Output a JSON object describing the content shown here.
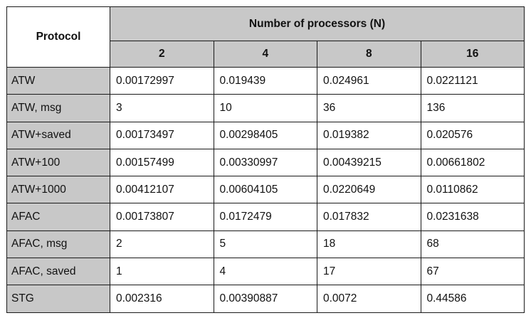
{
  "table": {
    "corner_header": "Protocol",
    "group_header": "Number of processors (N)",
    "columns": [
      "2",
      "4",
      "8",
      "16"
    ],
    "rows": [
      {
        "label": "ATW",
        "values": [
          "0.00172997",
          "0.019439",
          "0.024961",
          "0.0221121"
        ]
      },
      {
        "label": "ATW, msg",
        "values": [
          "3",
          "10",
          "36",
          "136"
        ]
      },
      {
        "label": "ATW+saved",
        "values": [
          "0.00173497",
          "0.00298405",
          "0.019382",
          "0.020576"
        ]
      },
      {
        "label": "ATW+100",
        "values": [
          "0.00157499",
          "0.00330997",
          "0.00439215",
          "0.00661802"
        ]
      },
      {
        "label": "ATW+1000",
        "values": [
          "0.00412107",
          "0.00604105",
          "0.0220649",
          "0.0110862"
        ]
      },
      {
        "label": "AFAC",
        "values": [
          "0.00173807",
          "0.0172479",
          "0.017832",
          "0.0231638"
        ]
      },
      {
        "label": "AFAC, msg",
        "values": [
          "2",
          "5",
          "18",
          "68"
        ]
      },
      {
        "label": "AFAC, saved",
        "values": [
          "1",
          "4",
          "17",
          "67"
        ]
      },
      {
        "label": "STG",
        "values": [
          "0.002316",
          "0.00390887",
          "0.0072",
          "0.44586"
        ]
      }
    ]
  },
  "colors": {
    "header_background": "#c8c8c8",
    "border": "#1a1a1a",
    "cell_background": "#ffffff"
  }
}
